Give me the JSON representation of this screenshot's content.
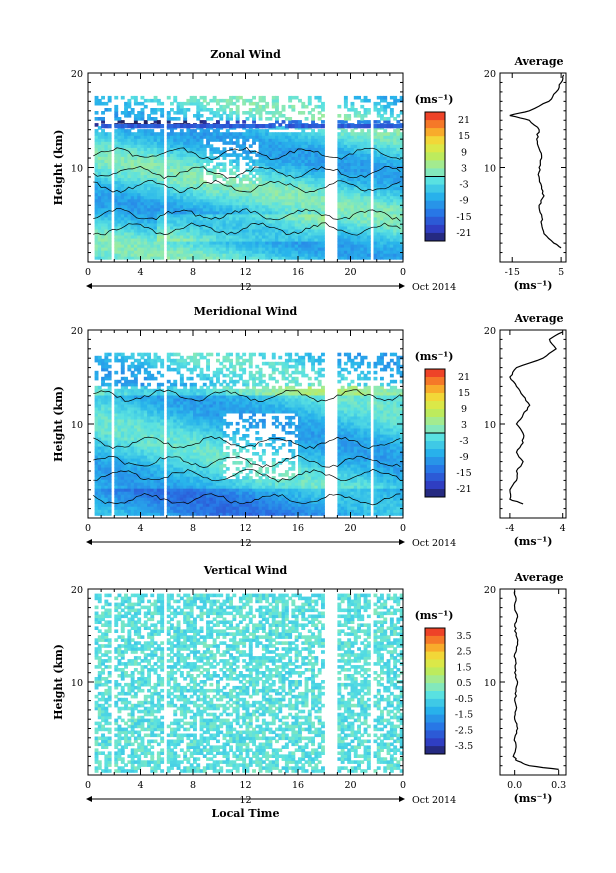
{
  "chart_data": [
    {
      "type": "heatmap",
      "title": "Zonal Wind",
      "ylabel": "Height (km)",
      "ylim": [
        0,
        20
      ],
      "xlim": [
        0,
        24
      ],
      "x_ticks": [
        "0",
        "4",
        "8",
        "12",
        "16",
        "20",
        "0"
      ],
      "y_ticks": [
        "10",
        "20"
      ],
      "date_marker": "12",
      "date_label": "Oct 2014",
      "colorbar": {
        "unit": "(ms⁻¹)",
        "ticks": [
          "21",
          "15",
          "9",
          "3",
          "-3",
          "-9",
          "-15",
          "-21"
        ],
        "range": [
          -24,
          24
        ]
      },
      "average_profile": {
        "title": "Average",
        "xlabel": "(ms⁻¹)",
        "x_ticks": [
          "-15",
          "5"
        ],
        "xlim": [
          -20,
          7
        ],
        "y_ticks": [
          "10",
          "20"
        ],
        "heights": [
          1.5,
          2,
          3,
          4,
          5,
          6,
          7,
          8,
          9,
          10,
          11,
          12,
          13,
          14,
          15,
          15.5,
          16,
          17,
          18,
          19,
          19.8
        ],
        "values": [
          5,
          2,
          -2,
          -3,
          -3,
          -4,
          -2,
          -3,
          -4,
          -4,
          -3,
          -4,
          -5,
          -4,
          -8,
          -16,
          -8,
          0,
          3,
          5,
          6
        ]
      }
    },
    {
      "type": "heatmap",
      "title": "Meridional Wind",
      "ylabel": "Height (km)",
      "ylim": [
        0,
        20
      ],
      "xlim": [
        0,
        24
      ],
      "x_ticks": [
        "0",
        "4",
        "8",
        "12",
        "16",
        "20",
        "0"
      ],
      "y_ticks": [
        "10",
        "20"
      ],
      "date_marker": "12",
      "date_label": "Oct 2014",
      "colorbar": {
        "unit": "(ms⁻¹)",
        "ticks": [
          "21",
          "15",
          "9",
          "3",
          "-3",
          "-9",
          "-15",
          "-21"
        ],
        "range": [
          -24,
          24
        ]
      },
      "average_profile": {
        "title": "Average",
        "xlabel": "(ms⁻¹)",
        "x_ticks": [
          "-4",
          "4"
        ],
        "xlim": [
          -5.5,
          4.5
        ],
        "y_ticks": [
          "10",
          "20"
        ],
        "heights": [
          1.5,
          2,
          3,
          4,
          5,
          6,
          7,
          8,
          9,
          10,
          11,
          12,
          13,
          14,
          15,
          16,
          17,
          18,
          19,
          19.8
        ],
        "values": [
          -2,
          -4,
          -4,
          -3,
          -3,
          -2,
          -3,
          -2,
          -2,
          -3,
          -2,
          -1,
          -2,
          -3,
          -4,
          -3,
          1,
          3,
          2,
          4
        ]
      }
    },
    {
      "type": "heatmap",
      "title": "Vertical Wind",
      "ylabel": "Height (km)",
      "xlabel": "Local Time",
      "ylim": [
        0,
        20
      ],
      "xlim": [
        0,
        24
      ],
      "x_ticks": [
        "0",
        "4",
        "8",
        "12",
        "16",
        "20",
        "0"
      ],
      "y_ticks": [
        "10",
        "20"
      ],
      "date_marker": "12",
      "date_label": "Oct 2014",
      "colorbar": {
        "unit": "(ms⁻¹)",
        "ticks": [
          "3.5",
          "2.5",
          "1.5",
          "0.5",
          "-0.5",
          "-1.5",
          "-2.5",
          "-3.5"
        ],
        "range": [
          -4,
          4
        ]
      },
      "average_profile": {
        "title": "Average",
        "xlabel": "(ms⁻¹)",
        "x_ticks": [
          "0.0",
          "0.3"
        ],
        "xlim": [
          -0.1,
          0.35
        ],
        "y_ticks": [
          "10",
          "20"
        ],
        "heights": [
          0.6,
          1,
          1.5,
          2,
          3,
          4,
          5,
          6,
          7,
          8,
          9,
          10,
          11,
          12,
          13,
          14,
          15,
          16,
          17,
          18,
          19,
          19.8
        ],
        "values": [
          0.3,
          0.1,
          0.02,
          -0.01,
          0.01,
          0.0,
          0.02,
          0.0,
          0.01,
          0.0,
          0.01,
          0.02,
          0.0,
          0.01,
          0.0,
          0.02,
          0.01,
          0.0,
          0.02,
          0.0,
          0.01,
          0.0
        ]
      }
    }
  ]
}
